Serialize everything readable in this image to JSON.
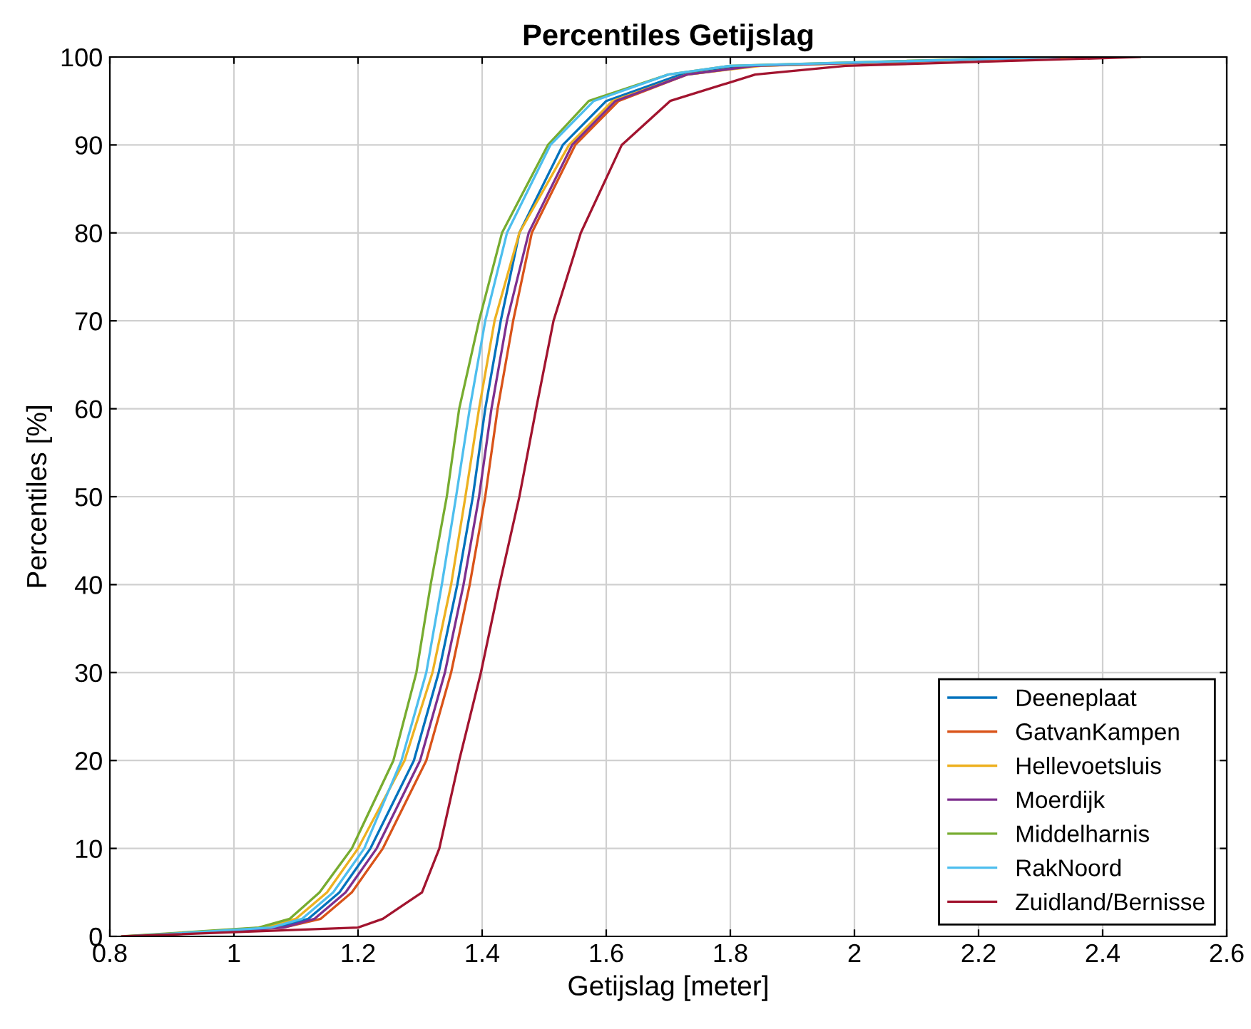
{
  "chart_data": {
    "type": "line",
    "title": "Percentiles Getijslag",
    "xlabel": "Getijslag [meter]",
    "ylabel": "Percentiles [%]",
    "xlim": [
      0.8,
      2.6
    ],
    "xticks": [
      0.8,
      1,
      1.2,
      1.4,
      1.6,
      1.8,
      2,
      2.2,
      2.4,
      2.6
    ],
    "ylim": [
      0,
      100
    ],
    "yticks": [
      0,
      10,
      20,
      30,
      40,
      50,
      60,
      70,
      80,
      90,
      100
    ],
    "grid": true,
    "legend": "bottom right",
    "marker": "none",
    "line_style": "solid",
    "series": [
      {
        "name": "Deeneplaat",
        "color": "#0072bd",
        "x": [
          0.84,
          1.07,
          1.12,
          1.17,
          1.22,
          1.29,
          1.33,
          1.36,
          1.385,
          1.405,
          1.43,
          1.46,
          1.53,
          1.6,
          1.72,
          1.83
        ],
        "values": [
          0,
          1,
          2,
          5,
          10,
          20,
          30,
          40,
          50,
          60,
          70,
          80,
          90,
          95,
          98,
          99
        ]
      },
      {
        "name": "GatvanKampen",
        "color": "#d95319",
        "x": [
          0.85,
          1.08,
          1.14,
          1.19,
          1.24,
          1.31,
          1.35,
          1.38,
          1.405,
          1.425,
          1.45,
          1.48,
          1.55,
          1.62,
          1.73,
          1.84,
          2.32
        ],
        "values": [
          0,
          1,
          2,
          5,
          10,
          20,
          30,
          40,
          50,
          60,
          70,
          80,
          90,
          95,
          98,
          99,
          100
        ]
      },
      {
        "name": "Hellevoetsluis",
        "color": "#edb120",
        "x": [
          0.83,
          1.05,
          1.1,
          1.15,
          1.2,
          1.275,
          1.32,
          1.35,
          1.373,
          1.395,
          1.42,
          1.46,
          1.54,
          1.61,
          1.73,
          1.85,
          2.35
        ],
        "values": [
          0,
          1,
          2,
          5,
          10,
          20,
          30,
          40,
          50,
          60,
          70,
          80,
          90,
          95,
          98,
          99,
          100
        ]
      },
      {
        "name": "Moerdijk",
        "color": "#7e2f8e",
        "x": [
          0.84,
          1.08,
          1.13,
          1.18,
          1.23,
          1.3,
          1.34,
          1.37,
          1.395,
          1.415,
          1.44,
          1.475,
          1.545,
          1.615,
          1.73,
          1.84,
          2.33
        ],
        "values": [
          0,
          1,
          2,
          5,
          10,
          20,
          30,
          40,
          50,
          60,
          70,
          80,
          90,
          95,
          98,
          99,
          100
        ]
      },
      {
        "name": "Middelharnis",
        "color": "#77ac30",
        "x": [
          0.82,
          1.04,
          1.09,
          1.138,
          1.19,
          1.257,
          1.294,
          1.317,
          1.343,
          1.363,
          1.395,
          1.432,
          1.506,
          1.572,
          1.7,
          1.8,
          2.3
        ],
        "values": [
          0,
          1,
          2,
          5,
          10,
          20,
          30,
          40,
          50,
          60,
          70,
          80,
          90,
          95,
          98,
          99,
          100
        ]
      },
      {
        "name": "RakNoord",
        "color": "#4dbeee",
        "x": [
          0.83,
          1.06,
          1.11,
          1.16,
          1.21,
          1.27,
          1.31,
          1.335,
          1.358,
          1.38,
          1.405,
          1.44,
          1.51,
          1.58,
          1.7,
          1.8,
          2.33
        ],
        "values": [
          0,
          1,
          2,
          5,
          10,
          20,
          30,
          40,
          50,
          60,
          70,
          80,
          90,
          95,
          98,
          99,
          100
        ]
      },
      {
        "name": "Zuidland/Bernisse",
        "color": "#a2142f",
        "x": [
          0.82,
          1.2,
          1.24,
          1.303,
          1.331,
          1.363,
          1.398,
          1.428,
          1.46,
          1.487,
          1.515,
          1.559,
          1.625,
          1.703,
          1.84,
          1.986,
          2.46
        ],
        "values": [
          0,
          1,
          2,
          5,
          10,
          20,
          30,
          40,
          50,
          60,
          70,
          80,
          90,
          95,
          98,
          99,
          100
        ]
      }
    ]
  }
}
